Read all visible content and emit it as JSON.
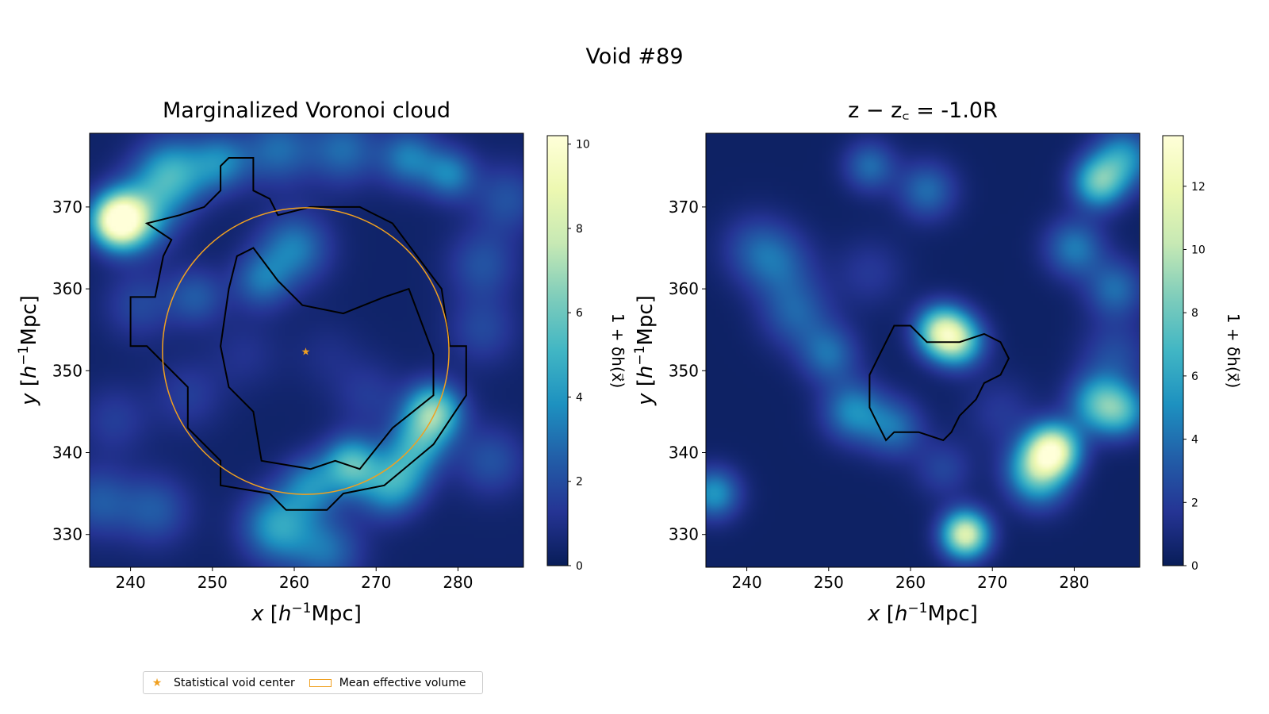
{
  "figure_title": "Void #89",
  "chart_data": [
    {
      "type": "heatmap",
      "title": "Marginalized Voronoi cloud",
      "xlabel": "x [h⁻¹Mpc]",
      "ylabel": "y [h⁻¹Mpc]",
      "xlim": [
        235,
        288
      ],
      "ylim": [
        326,
        379
      ],
      "xticks": [
        240,
        250,
        260,
        270,
        280
      ],
      "yticks": [
        330,
        340,
        350,
        360,
        370
      ],
      "colorbar": {
        "label": "1 + δh(x⃗)",
        "range": [
          0,
          10.2
        ],
        "ticks": [
          0,
          2,
          4,
          6,
          8,
          10
        ]
      },
      "colormap": [
        "#081d58",
        "#253494",
        "#225ea8",
        "#1d91c0",
        "#41b6c4",
        "#7fcdbb",
        "#c7e9b4",
        "#edf8b1",
        "#ffffd9"
      ],
      "void_center": [
        261.4,
        352.4
      ],
      "effective_radius": 17.5,
      "contours": [
        [
          [
            256,
            339
          ],
          [
            262,
            338
          ],
          [
            265,
            339
          ],
          [
            268,
            338
          ],
          [
            272,
            343
          ],
          [
            277,
            347
          ],
          [
            277,
            352
          ],
          [
            274,
            360
          ],
          [
            271,
            359
          ],
          [
            266,
            357
          ],
          [
            261,
            358
          ],
          [
            258,
            361
          ],
          [
            255,
            365
          ],
          [
            253,
            364
          ],
          [
            252,
            360
          ],
          [
            251,
            353
          ],
          [
            252,
            348
          ],
          [
            255,
            345
          ]
        ],
        [
          [
            252,
            376
          ],
          [
            255,
            376
          ],
          [
            255,
            372
          ],
          [
            257,
            371
          ],
          [
            258,
            369
          ],
          [
            262,
            370
          ],
          [
            268,
            370
          ],
          [
            272,
            368
          ],
          [
            278,
            360
          ],
          [
            279,
            353
          ],
          [
            281,
            353
          ],
          [
            281,
            347
          ],
          [
            279,
            344
          ],
          [
            277,
            341
          ],
          [
            271,
            336
          ],
          [
            266,
            335
          ],
          [
            264,
            333
          ],
          [
            259,
            333
          ],
          [
            257,
            335
          ],
          [
            251,
            336
          ],
          [
            251,
            339
          ],
          [
            247,
            343
          ],
          [
            247,
            348
          ],
          [
            242,
            353
          ],
          [
            240,
            353
          ],
          [
            240,
            359
          ],
          [
            243,
            359
          ],
          [
            244,
            364
          ],
          [
            245,
            366
          ],
          [
            242,
            368
          ],
          [
            246,
            369
          ],
          [
            249,
            370
          ],
          [
            251,
            372
          ],
          [
            251,
            375
          ]
        ]
      ],
      "density_blobs": [
        [
          238.5,
          368.3,
          2.2,
          9.5
        ],
        [
          241,
          369,
          3,
          4
        ],
        [
          245,
          374,
          3,
          4.5
        ],
        [
          251,
          375.5,
          2.5,
          3
        ],
        [
          258,
          377,
          3,
          2.5
        ],
        [
          266,
          377,
          3,
          2.5
        ],
        [
          274,
          376,
          2.5,
          3
        ],
        [
          279,
          374,
          2.2,
          3
        ],
        [
          260,
          365,
          3,
          3
        ],
        [
          256,
          361,
          2.5,
          2.5
        ],
        [
          248,
          359,
          2.5,
          2
        ],
        [
          241,
          358,
          3,
          1.5
        ],
        [
          277,
          345,
          2.4,
          6
        ],
        [
          275,
          341,
          2.5,
          3.5
        ],
        [
          273,
          337,
          2.5,
          3
        ],
        [
          267,
          338.5,
          2.4,
          5
        ],
        [
          262,
          336,
          2.5,
          3
        ],
        [
          258,
          331,
          3,
          4
        ],
        [
          264,
          328,
          3,
          2.5
        ],
        [
          271,
          335,
          2.5,
          2
        ],
        [
          284,
          339,
          3,
          1.8
        ],
        [
          236,
          334,
          3,
          2
        ],
        [
          243,
          333,
          3,
          2
        ],
        [
          283,
          355,
          3,
          1.5
        ],
        [
          283,
          363,
          3,
          1.8
        ],
        [
          286,
          371,
          3,
          1.8
        ],
        [
          247,
          347,
          3,
          1.2
        ],
        [
          238,
          344,
          3,
          1.2
        ],
        [
          269,
          347,
          3,
          1.1
        ],
        [
          254,
          352,
          3,
          0.8
        ],
        [
          264,
          352,
          3,
          0.6
        ]
      ]
    },
    {
      "type": "heatmap",
      "title": "z − z꜀ = -1.0R",
      "xlabel": "x [h⁻¹Mpc]",
      "ylabel": "y [h⁻¹Mpc]",
      "xlim": [
        235,
        288
      ],
      "ylim": [
        326,
        379
      ],
      "xticks": [
        240,
        250,
        260,
        270,
        280
      ],
      "yticks": [
        330,
        340,
        350,
        360,
        370
      ],
      "colorbar": {
        "label": "1 + δh(x⃗)",
        "range": [
          0,
          13.6
        ],
        "ticks": [
          0,
          2,
          4,
          6,
          8,
          10,
          12
        ]
      },
      "colormap": [
        "#081d58",
        "#253494",
        "#225ea8",
        "#1d91c0",
        "#41b6c4",
        "#7fcdbb",
        "#c7e9b4",
        "#edf8b1",
        "#ffffd9"
      ],
      "contours": [
        [
          [
            258,
            355.5
          ],
          [
            260,
            355.5
          ],
          [
            262,
            353.5
          ],
          [
            266,
            353.5
          ],
          [
            269,
            354.5
          ],
          [
            271,
            353.5
          ],
          [
            272,
            351.5
          ],
          [
            271,
            349.5
          ],
          [
            269,
            348.5
          ],
          [
            268,
            346.5
          ],
          [
            266,
            344.5
          ],
          [
            265,
            342.5
          ],
          [
            264,
            341.5
          ],
          [
            261,
            342.5
          ],
          [
            258,
            342.5
          ],
          [
            257,
            341.5
          ],
          [
            256,
            343.5
          ],
          [
            255,
            345.5
          ],
          [
            255,
            349.5
          ],
          [
            256,
            351.5
          ]
        ]
      ],
      "density_blobs": [
        [
          263.8,
          354.8,
          2.2,
          9
        ],
        [
          266,
          353.5,
          2.2,
          6
        ],
        [
          277.4,
          340.3,
          2.2,
          11.5
        ],
        [
          275,
          338,
          2.5,
          5
        ],
        [
          266.7,
          330,
          2,
          11
        ],
        [
          283,
          346,
          2.5,
          6
        ],
        [
          286,
          345,
          2.2,
          4.5
        ],
        [
          283,
          373,
          2.2,
          7
        ],
        [
          286,
          376,
          2.5,
          5
        ],
        [
          280,
          365,
          2.5,
          4
        ],
        [
          285,
          360,
          2.5,
          3.5
        ],
        [
          258,
          343,
          2.5,
          3.5
        ],
        [
          253,
          345,
          2.6,
          4.5
        ],
        [
          250,
          352,
          2.5,
          3.5
        ],
        [
          246,
          357,
          3,
          3
        ],
        [
          244,
          363,
          3,
          2.5
        ],
        [
          241,
          365,
          3,
          2.2
        ],
        [
          255,
          375,
          2.2,
          3.5
        ],
        [
          262,
          372,
          2.5,
          3.5
        ],
        [
          236,
          335,
          2.2,
          5
        ],
        [
          264,
          338,
          2.5,
          2
        ],
        [
          271,
          345,
          3,
          1.5
        ],
        [
          285,
          352,
          3,
          2.2
        ],
        [
          276,
          336,
          2.5,
          2.5
        ],
        [
          255,
          362,
          3,
          1.5
        ]
      ]
    }
  ],
  "legend": {
    "center_label": "Statistical void center",
    "volume_label": "Mean effective volume",
    "accent_color": "#f0a020"
  }
}
